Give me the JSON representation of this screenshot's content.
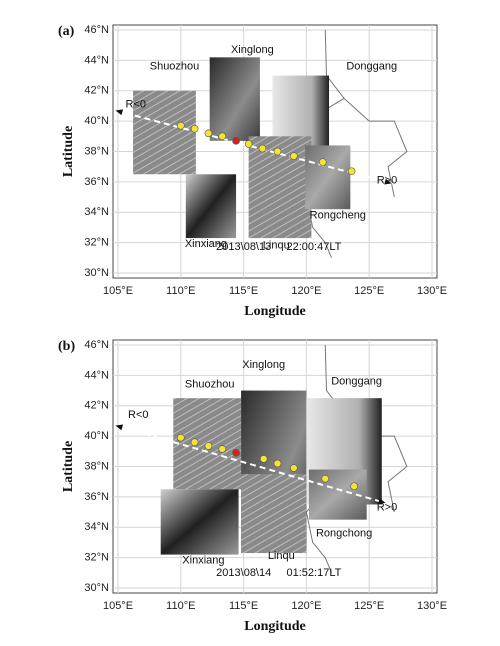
{
  "panels": [
    {
      "label": "(a)",
      "xlabel": "Longitude",
      "ylabel": "Latitude",
      "xlim": [
        105,
        130
      ],
      "ylim": [
        30,
        46
      ],
      "xticks": [
        {
          "value": 105,
          "label": "105°E"
        },
        {
          "value": 110,
          "label": "110°E"
        },
        {
          "value": 115,
          "label": "115°E"
        },
        {
          "value": 120,
          "label": "120°E"
        },
        {
          "value": 125,
          "label": "125°E"
        },
        {
          "value": 130,
          "label": "130°E"
        }
      ],
      "yticks": [
        {
          "value": 30,
          "label": "30°N"
        },
        {
          "value": 32,
          "label": "32°N"
        },
        {
          "value": 34,
          "label": "34°N"
        },
        {
          "value": 36,
          "label": "36°N"
        },
        {
          "value": 38,
          "label": "38°N"
        },
        {
          "value": 40,
          "label": "40°N"
        },
        {
          "value": 42,
          "label": "42°N"
        },
        {
          "value": 44,
          "label": "44°N"
        },
        {
          "value": 46,
          "label": "46°N"
        }
      ],
      "stations": [
        "Shuozhou",
        "Xinglong",
        "Donggang",
        "Xinxiang",
        "Linqu",
        "Rongcheng"
      ],
      "direction_labels": [
        "R<0",
        "R>0"
      ],
      "timestamp": "2013\\08\\13     22:00:47LT",
      "points": {
        "lon": [
          110.0,
          111.1,
          112.2,
          113.3,
          114.4,
          115.4,
          116.5,
          117.7,
          119.0,
          121.3,
          123.6
        ],
        "lat": [
          39.7,
          39.5,
          39.2,
          39.0,
          38.7,
          38.5,
          38.2,
          38.0,
          37.7,
          37.3,
          36.7
        ],
        "colors": [
          "#f2e431",
          "#f2e431",
          "#f2e431",
          "#f2e431",
          "#d42020",
          "#f2e431",
          "#f2e431",
          "#f2e431",
          "#f2e431",
          "#f2e431",
          "#f2e431"
        ]
      }
    },
    {
      "label": "(b)",
      "xlabel": "Longitude",
      "ylabel": "Latitude",
      "xlim": [
        105,
        130
      ],
      "ylim": [
        30,
        46
      ],
      "xticks": [
        {
          "value": 105,
          "label": "105°E"
        },
        {
          "value": 110,
          "label": "110°E"
        },
        {
          "value": 115,
          "label": "115°E"
        },
        {
          "value": 120,
          "label": "120°E"
        },
        {
          "value": 125,
          "label": "125°E"
        },
        {
          "value": 130,
          "label": "130°E"
        }
      ],
      "yticks": [
        {
          "value": 30,
          "label": "30°N"
        },
        {
          "value": 32,
          "label": "32°N"
        },
        {
          "value": 34,
          "label": "34°N"
        },
        {
          "value": 36,
          "label": "36°N"
        },
        {
          "value": 38,
          "label": "38°N"
        },
        {
          "value": 40,
          "label": "40°N"
        },
        {
          "value": 42,
          "label": "42°N"
        },
        {
          "value": 44,
          "label": "44°N"
        },
        {
          "value": 46,
          "label": "46°N"
        }
      ],
      "stations": [
        "Shuozhou",
        "Xinglong",
        "Donggang",
        "Xinxiang",
        "Linqu",
        "Rongchong"
      ],
      "direction_labels": [
        "R<0",
        "R>0"
      ],
      "timestamp": "2013\\08\\14     01:52:17LT",
      "points": {
        "lon": [
          110.0,
          111.1,
          112.2,
          113.3,
          114.4,
          116.6,
          117.7,
          119.0,
          121.5,
          123.8
        ],
        "lat": [
          39.9,
          39.6,
          39.35,
          39.15,
          38.9,
          38.5,
          38.2,
          37.9,
          37.2,
          36.7
        ],
        "colors": [
          "#f2e431",
          "#f2e431",
          "#f2e431",
          "#f2e431",
          "#d42020",
          "#f2e431",
          "#f2e431",
          "#f2e431",
          "#f2e431",
          "#f2e431"
        ]
      }
    }
  ]
}
